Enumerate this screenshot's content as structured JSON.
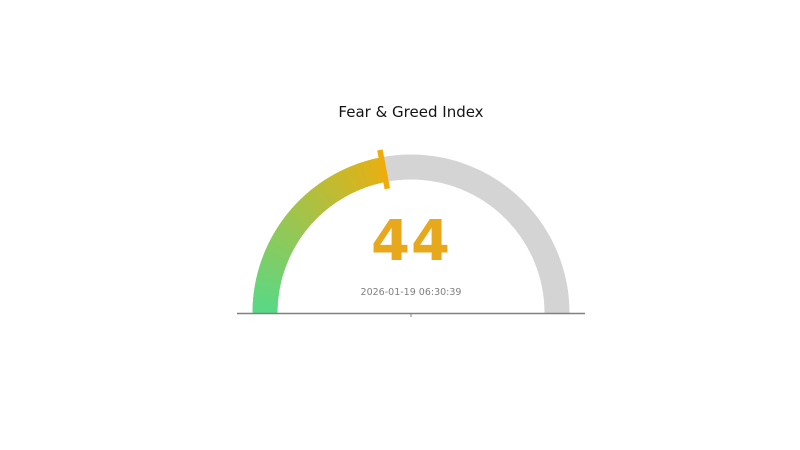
{
  "chart_data": {
    "type": "gauge",
    "title": "Fear & Greed Index",
    "value": 44,
    "value_label": "44",
    "min": 0,
    "max": 100,
    "timestamp": "2026-01-19 06:30:39",
    "legend_position": "none",
    "colors": {
      "arc_start": "#57d987",
      "arc_end": "#e6b013",
      "needle": "#efac0a",
      "track": "#d4d4d4",
      "value_text": "#e8a81c",
      "timestamp_text": "#808080",
      "title_text": "#141414",
      "baseline": "#808080"
    }
  }
}
